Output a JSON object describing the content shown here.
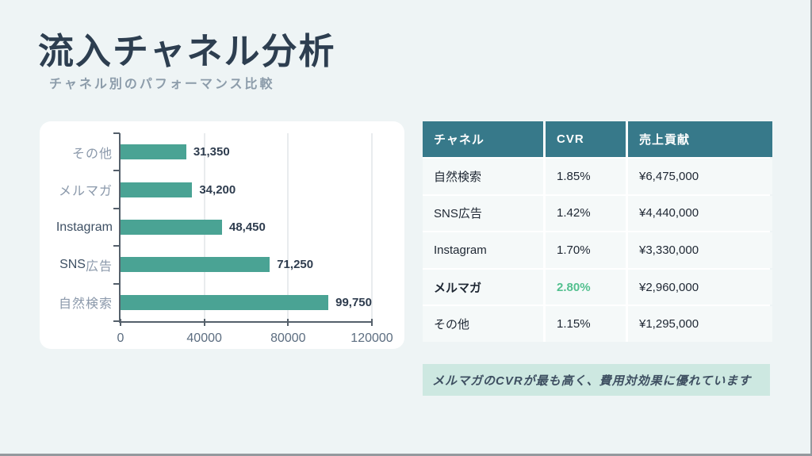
{
  "slide": {
    "title": "流入チャネル分析",
    "subtitle": "チャネル別のパフォーマンス比較"
  },
  "chart_data": {
    "type": "bar",
    "orientation": "horizontal",
    "title": "",
    "categories": [
      "その他",
      "メルマガ",
      "Instagram",
      "SNS広告",
      "自然検索"
    ],
    "values": [
      31350,
      34200,
      48450,
      71250,
      99750
    ],
    "value_labels": [
      "31,350",
      "34,200",
      "48,450",
      "71,250",
      "99,750"
    ],
    "xlim": [
      0,
      120000
    ],
    "x_ticks": [
      0,
      40000,
      80000,
      120000
    ],
    "x_tick_labels": [
      "0",
      "40000",
      "80000",
      "120000"
    ],
    "bar_color": "#4aa394",
    "grid": true,
    "legend": "none"
  },
  "table": {
    "header_bg": "#37798a",
    "highlight_color": "#53c08f",
    "headers": [
      "チャネル",
      "CVR",
      "売上貢献"
    ],
    "rows": [
      {
        "channel": "自然検索",
        "cvr": "1.85%",
        "revenue": "¥6,475,000",
        "highlight": false
      },
      {
        "channel": "SNS広告",
        "cvr": "1.42%",
        "revenue": "¥4,440,000",
        "highlight": false
      },
      {
        "channel": "Instagram",
        "cvr": "1.70%",
        "revenue": "¥3,330,000",
        "highlight": false
      },
      {
        "channel": "メルマガ",
        "cvr": "2.80%",
        "revenue": "¥2,960,000",
        "highlight": true
      },
      {
        "channel": "その他",
        "cvr": "1.15%",
        "revenue": "¥1,295,000",
        "highlight": false
      }
    ]
  },
  "note": {
    "text": "メルマガのCVRが最も高く、費用対効果に優れています",
    "bg": "#cde8e1"
  }
}
